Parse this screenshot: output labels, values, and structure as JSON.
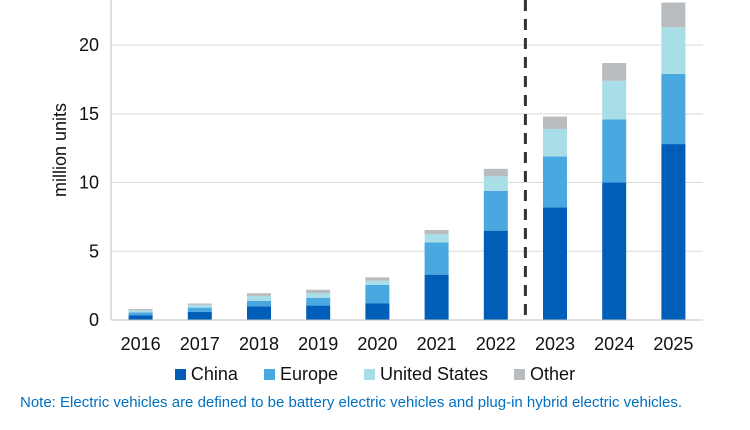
{
  "chart_data": {
    "type": "bar",
    "stacked": true,
    "categories": [
      "2016",
      "2017",
      "2018",
      "2019",
      "2020",
      "2021",
      "2022",
      "2023",
      "2024",
      "2025"
    ],
    "series": [
      {
        "name": "China",
        "color": "#005eb8",
        "values": [
          0.35,
          0.6,
          1.0,
          1.05,
          1.2,
          3.3,
          6.5,
          8.2,
          10.0,
          12.8
        ]
      },
      {
        "name": "Europe",
        "color": "#4aa8e0",
        "values": [
          0.2,
          0.3,
          0.4,
          0.55,
          1.35,
          2.35,
          2.9,
          3.7,
          4.6,
          5.1
        ]
      },
      {
        "name": "United States",
        "color": "#a9dde8",
        "values": [
          0.15,
          0.2,
          0.35,
          0.35,
          0.3,
          0.6,
          1.05,
          2.0,
          2.8,
          3.4
        ]
      },
      {
        "name": "Other",
        "color": "#b8bcbf",
        "values": [
          0.1,
          0.1,
          0.2,
          0.25,
          0.25,
          0.3,
          0.55,
          0.9,
          1.3,
          1.8
        ]
      }
    ],
    "xlabel": "",
    "ylabel": "million units",
    "yticks": [
      0,
      5,
      10,
      15,
      20
    ],
    "ylim": [
      0,
      23.5
    ],
    "grid": true,
    "legend_position": "bottom",
    "divider_after_category": "2022"
  },
  "note": "Note: Electric vehicles are defined to be battery electric vehicles and plug-in hybrid electric vehicles."
}
